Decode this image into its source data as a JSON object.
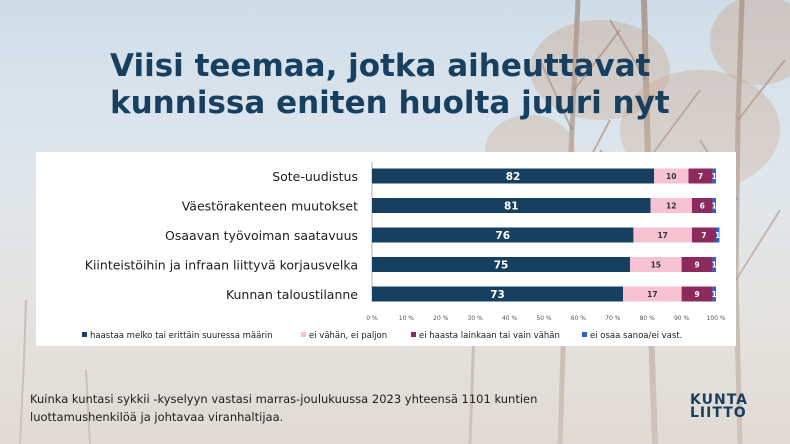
{
  "title": "Viisi teemaa, jotka aiheuttavat kunnissa eniten huolta juuri nyt",
  "footnote": "Kuinka kuntasi sykkii -kyselyyn vastasi marras-joulukuussa 2023 yhteensä 1101 kuntien luottamushenkilöä ja johtavaa viranhaltijaa.",
  "logo": {
    "line1": "KUNTA",
    "line2": "LIITTO"
  },
  "colors": {
    "title": "#173f5f",
    "s1": "#173f5f",
    "s2": "#f7c3d3",
    "s3": "#8c2a5e",
    "s4": "#2d5fd6"
  },
  "chart_data": {
    "type": "bar",
    "orientation": "horizontal",
    "stacked": true,
    "categories": [
      "Sote-uudistus",
      "Väestörakenteen muutokset",
      "Osaavan työvoiman saatavuus",
      "Kiinteistöihin ja infraan liittyvä korjausvelka",
      "Kunnan taloustilanne"
    ],
    "series": [
      {
        "name": "haastaa melko tai erittäin suuressa määrin",
        "values": [
          82,
          81,
          76,
          75,
          73
        ]
      },
      {
        "name": "ei vähän, ei paljon",
        "values": [
          10,
          12,
          17,
          15,
          17
        ]
      },
      {
        "name": "ei haasta lainkaan tai vain vähän",
        "values": [
          7,
          6,
          7,
          9,
          9
        ]
      },
      {
        "name": "ei osaa sanoa/ei vast.",
        "values": [
          1,
          1,
          1,
          1,
          1
        ]
      }
    ],
    "xlim": [
      0,
      100
    ],
    "xticks": [
      "0 %",
      "10 %",
      "20 %",
      "30 %",
      "40 %",
      "50 %",
      "60 %",
      "70 %",
      "80 %",
      "90 %",
      "100 %"
    ],
    "legend_position": "bottom",
    "grid": false
  }
}
